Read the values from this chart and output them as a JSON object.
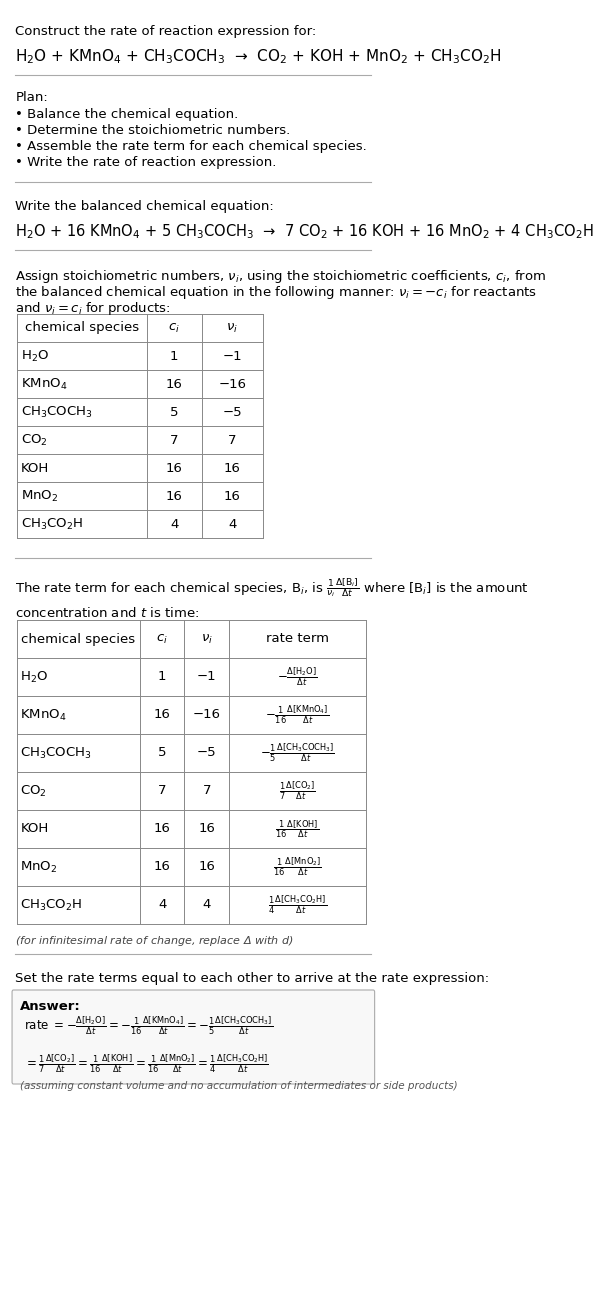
{
  "bg_color": "#ffffff",
  "text_color": "#000000",
  "title_line1": "Construct the rate of reaction expression for:",
  "reaction_unbalanced": "H$_2$O + KMnO$_4$ + CH$_3$COCH$_3$  →  CO$_2$ + KOH + MnO$_2$ + CH$_3$CO$_2$H",
  "plan_label": "Plan:",
  "plan_items": [
    "• Balance the chemical equation.",
    "• Determine the stoichiometric numbers.",
    "• Assemble the rate term for each chemical species.",
    "• Write the rate of reaction expression."
  ],
  "balanced_label": "Write the balanced chemical equation:",
  "reaction_balanced": "H$_2$O + 16 KMnO$_4$ + 5 CH$_3$COCH$_3$  →  7 CO$_2$ + 16 KOH + 16 MnO$_2$ + 4 CH$_3$CO$_2$H",
  "assign_text1": "Assign stoichiometric numbers, $\\nu_i$, using the stoichiometric coefficients, $c_i$, from",
  "assign_text2": "the balanced chemical equation in the following manner: $\\nu_i = -c_i$ for reactants",
  "assign_text3": "and $\\nu_i = c_i$ for products:",
  "table1_headers": [
    "chemical species",
    "$c_i$",
    "$\\nu_i$"
  ],
  "table1_data": [
    [
      "H$_2$O",
      "1",
      "−1"
    ],
    [
      "KMnO$_4$",
      "16",
      "−16"
    ],
    [
      "CH$_3$COCH$_3$",
      "5",
      "−5"
    ],
    [
      "CO$_2$",
      "7",
      "7"
    ],
    [
      "KOH",
      "16",
      "16"
    ],
    [
      "MnO$_2$",
      "16",
      "16"
    ],
    [
      "CH$_3$CO$_2$H",
      "4",
      "4"
    ]
  ],
  "rate_text1": "The rate term for each chemical species, B$_i$, is $\\frac{1}{\\nu_i}\\frac{\\Delta[\\mathrm{B}_i]}{\\Delta t}$ where [B$_i$] is the amount",
  "rate_text2": "concentration and $t$ is time:",
  "table2_headers": [
    "chemical species",
    "$c_i$",
    "$\\nu_i$",
    "rate term"
  ],
  "table2_data": [
    [
      "H$_2$O",
      "1",
      "−1",
      "$-\\frac{\\Delta[\\mathrm{H_2O}]}{\\Delta t}$"
    ],
    [
      "KMnO$_4$",
      "16",
      "−16",
      "$-\\frac{1}{16}\\frac{\\Delta[\\mathrm{KMnO_4}]}{\\Delta t}$"
    ],
    [
      "CH$_3$COCH$_3$",
      "5",
      "−5",
      "$-\\frac{1}{5}\\frac{\\Delta[\\mathrm{CH_3COCH_3}]}{\\Delta t}$"
    ],
    [
      "CO$_2$",
      "7",
      "7",
      "$\\frac{1}{7}\\frac{\\Delta[\\mathrm{CO_2}]}{\\Delta t}$"
    ],
    [
      "KOH",
      "16",
      "16",
      "$\\frac{1}{16}\\frac{\\Delta[\\mathrm{KOH}]}{\\Delta t}$"
    ],
    [
      "MnO$_2$",
      "16",
      "16",
      "$\\frac{1}{16}\\frac{\\Delta[\\mathrm{MnO_2}]}{\\Delta t}$"
    ],
    [
      "CH$_3$CO$_2$H",
      "4",
      "4",
      "$\\frac{1}{4}\\frac{\\Delta[\\mathrm{CH_3CO_2H}]}{\\Delta t}$"
    ]
  ],
  "infinitesimal_note": "(for infinitesimal rate of change, replace Δ with $d$)",
  "set_rate_text": "Set the rate terms equal to each other to arrive at the rate expression:",
  "answer_label": "Answer:",
  "answer_box_color": "#f0f0f0",
  "answer_line1": "rate $= -\\frac{\\Delta[\\mathrm{H_2O}]}{\\Delta t} = -\\frac{1}{16}\\frac{\\Delta[\\mathrm{KMnO_4}]}{\\Delta t} = -\\frac{1}{5}\\frac{\\Delta[\\mathrm{CH_3COCH_3}]}{\\Delta t}$",
  "answer_line2": "$= \\frac{1}{7}\\frac{\\Delta[\\mathrm{CO_2}]}{\\Delta t} = \\frac{1}{16}\\frac{\\Delta[\\mathrm{KOH}]}{\\Delta t} = \\frac{1}{16}\\frac{\\Delta[\\mathrm{MnO_2}]}{\\Delta t} = \\frac{1}{4}\\frac{\\Delta[\\mathrm{CH_3CO_2H}]}{\\Delta t}$",
  "answer_note": "(assuming constant volume and no accumulation of intermediates or side products)"
}
